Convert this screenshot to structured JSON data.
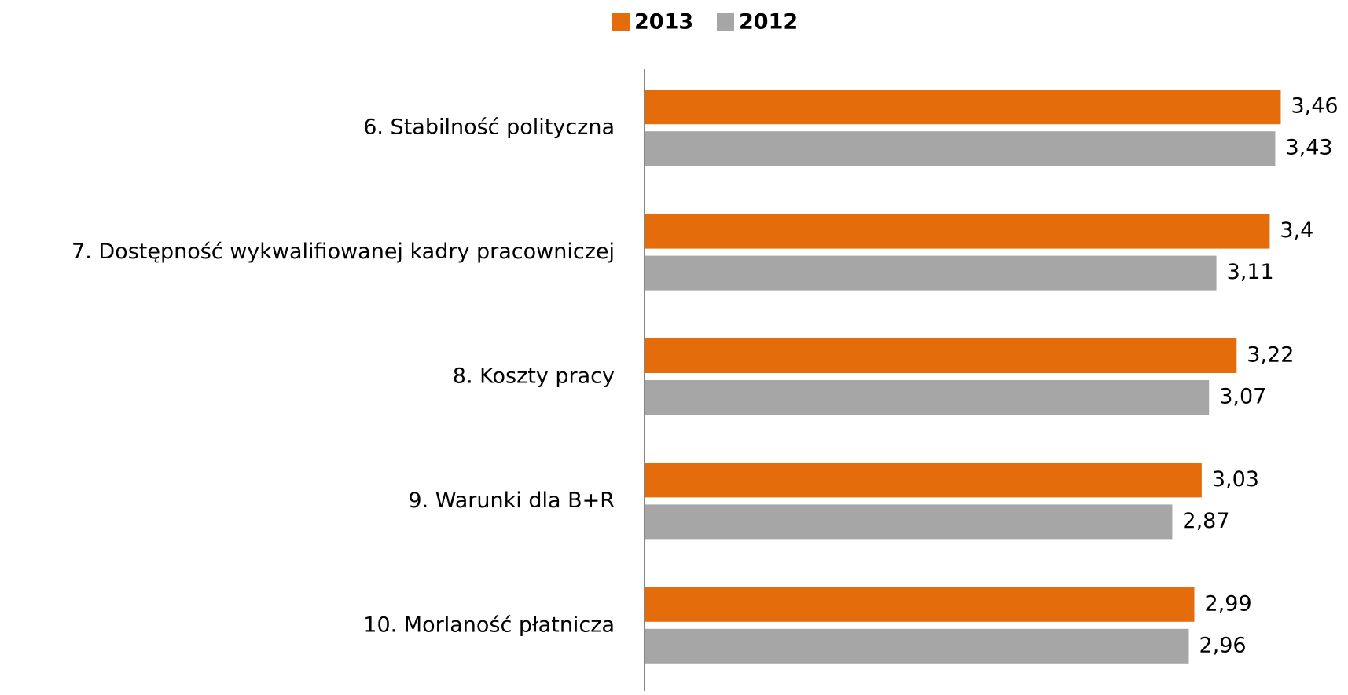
{
  "chart_data": {
    "type": "hbar",
    "categories": [
      "6. Stabilność polityczna",
      "7. Dostępność wykwalifiowanej kadry pracowniczej",
      "8. Koszty pracy",
      "9. Warunki dla B+R",
      "10. Morlaność płatnicza"
    ],
    "series": [
      {
        "name": "2013",
        "color": "#e46c0a",
        "values": [
          3.46,
          3.4,
          3.22,
          3.03,
          2.99
        ],
        "value_labels": [
          "3,46",
          "3,4",
          "3,22",
          "3,03",
          "2,99"
        ]
      },
      {
        "name": "2012",
        "color": "#a6a6a6",
        "values": [
          3.43,
          3.11,
          3.07,
          2.87,
          2.96
        ],
        "value_labels": [
          "3,43",
          "3,11",
          "3,07",
          "2,87",
          "2,96"
        ]
      }
    ],
    "xlim": [
      0,
      3.8
    ],
    "legend": "top"
  }
}
